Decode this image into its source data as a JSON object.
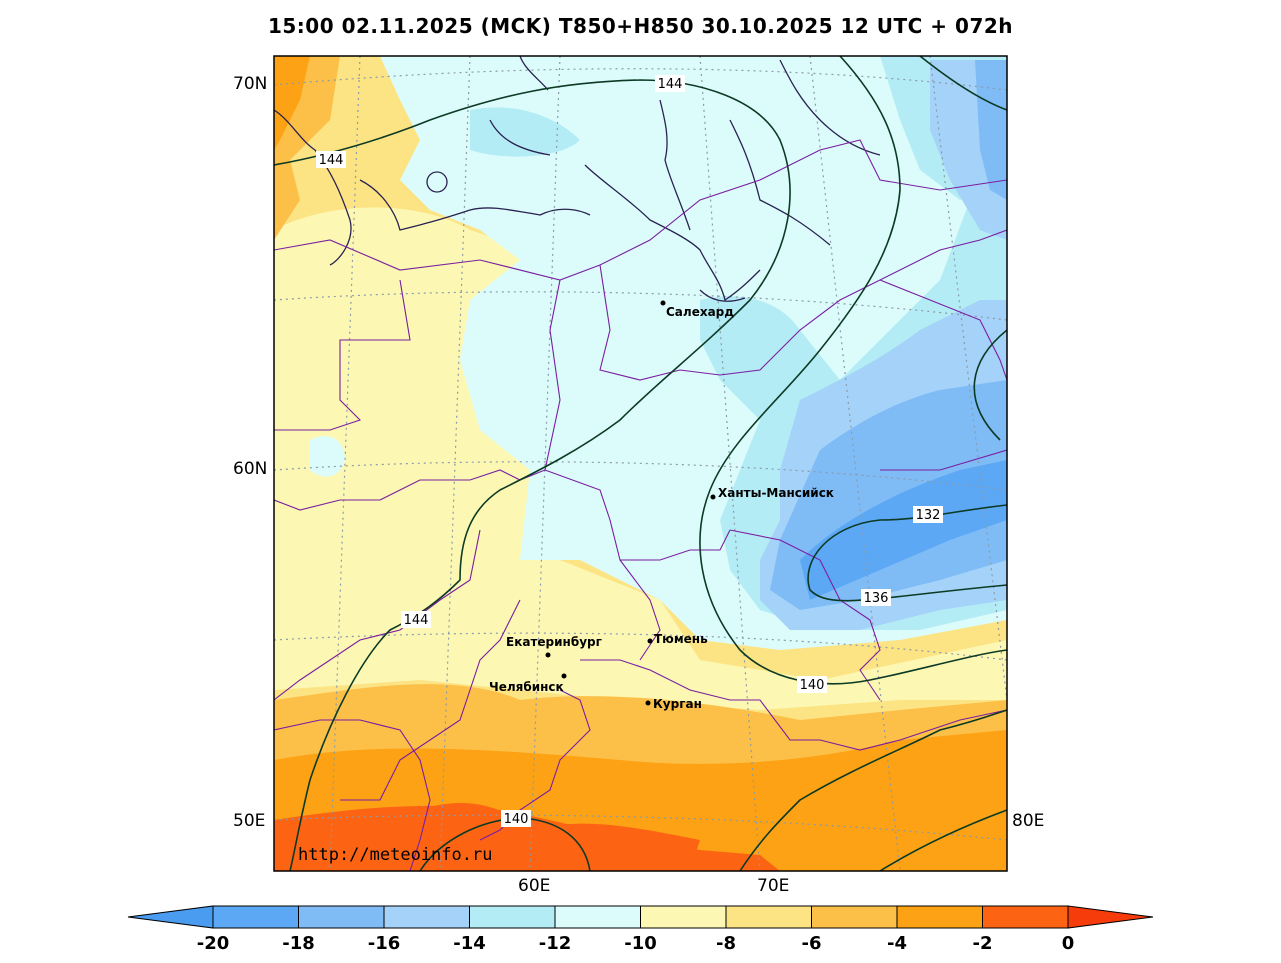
{
  "title": "15:00 02.11.2025 (MCK) T850+H850 30.10.2025 12 UTC + 072h",
  "watermark": "http://meteoinfo.ru",
  "latitude_labels": [
    "70N",
    "60N",
    "50E"
  ],
  "longitude_labels": [
    "60E",
    "70E",
    "80E"
  ],
  "cities": [
    {
      "name": "Салехард"
    },
    {
      "name": "Ханты-Мансийск"
    },
    {
      "name": "Екатеринбург"
    },
    {
      "name": "Тюмень"
    },
    {
      "name": "Челябинск"
    },
    {
      "name": "Курган"
    }
  ],
  "contour_labels": [
    "144",
    "144",
    "144",
    "132",
    "136",
    "140",
    "140"
  ],
  "color_scale": {
    "labels": [
      "-20",
      "-18",
      "-16",
      "-14",
      "-12",
      "-10",
      "-8",
      "-6",
      "-4",
      "-2",
      "0"
    ],
    "colors": [
      "#4a9cf0",
      "#5ca8f4",
      "#7fbcf6",
      "#a4d2f8",
      "#b4ecf6",
      "#dcfcfc",
      "#fcf8b4",
      "#fce484",
      "#fcc048",
      "#fca214",
      "#fc6414",
      "#f63c0a"
    ]
  },
  "field_colors": {
    "dark_blue": "#5ca8f4",
    "blue": "#7fbcf6",
    "light_blue": "#a4d2f8",
    "cyan": "#b4ecf6",
    "pale_cyan": "#dcfcfc",
    "pale_yellow": "#fcf8b4",
    "yellow": "#fce484",
    "light_orange": "#fcc048",
    "orange": "#fca214",
    "red_orange": "#fc6414"
  }
}
